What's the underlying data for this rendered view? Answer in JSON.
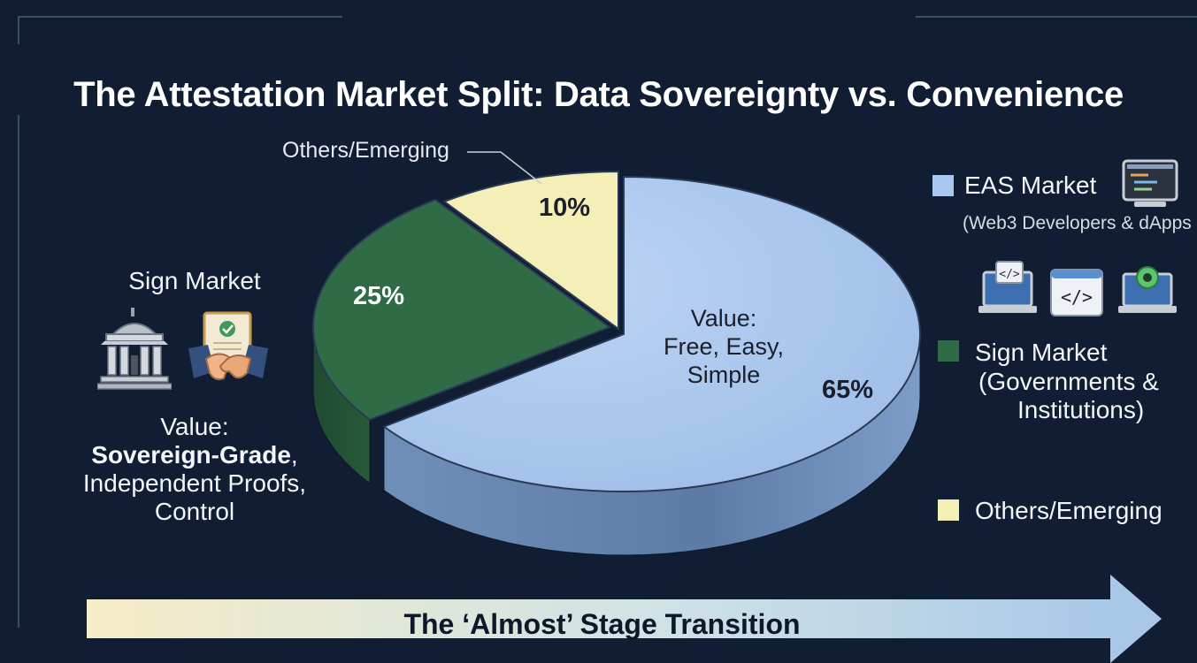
{
  "title": "The Attestation Market Split: Data Sovereignty vs. Convenience",
  "chart_data": {
    "type": "pie",
    "title": "The Attestation Market Split: Data Sovereignty vs. Convenience",
    "slices": [
      {
        "name": "EAS Market",
        "value": 65,
        "label": "65%",
        "color": "#a9c7f0"
      },
      {
        "name": "Sign Market",
        "value": 25,
        "label": "25%",
        "color": "#2f6b45"
      },
      {
        "name": "Others/Emerging",
        "value": 10,
        "label": "10%",
        "color": "#f3efb6"
      }
    ],
    "legend_position": "right"
  },
  "callout": "Others/Emerging",
  "eas_value": {
    "line1": "Value:",
    "line2": "Free, Easy,",
    "line3": "Simple"
  },
  "left_panel": {
    "heading": "Sign Market",
    "value_label": "Value:",
    "value_bold": "Sovereign-Grade",
    "value_comma": ",",
    "line2": "Independent Proofs,",
    "line3": "Control"
  },
  "legend": {
    "eas": {
      "label": "EAS Market",
      "sub": "(Web3 Developers & dApps",
      "color": "#a9c7f0"
    },
    "sign": {
      "line1": "Sign Market",
      "line2": "(Governments &",
      "line3": "Institutions)",
      "color": "#2f6b45"
    },
    "others": {
      "label": "Others/Emerging",
      "color": "#f3efb6"
    }
  },
  "banner": "The ‘Almost’ Stage Transition",
  "icons": [
    "government-building-icon",
    "handshake-certificate-icon",
    "code-laptop-icon",
    "code-window-icon",
    "gear-laptop-icon",
    "code-monitor-icon"
  ]
}
